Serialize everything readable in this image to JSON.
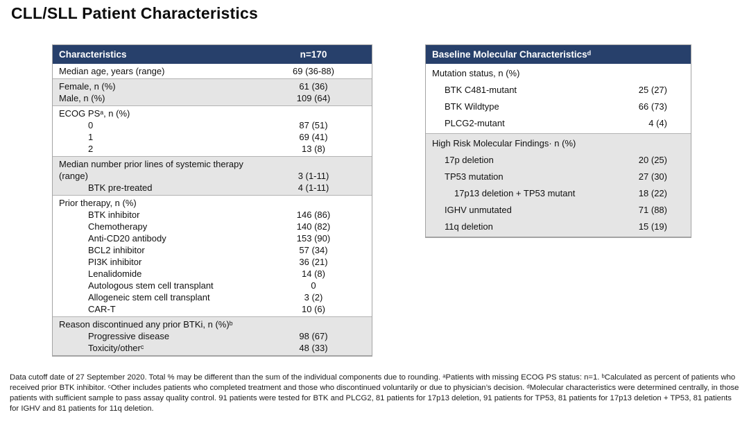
{
  "title": "CLL/SLL Patient Characteristics",
  "colors": {
    "header_bg": "#27406b",
    "header_fg": "#ffffff",
    "shaded_row_bg": "#e5e5e5"
  },
  "left_table": {
    "header": {
      "label": "Characteristics",
      "value": "n=170"
    },
    "sections": [
      {
        "shaded": false,
        "rows": [
          {
            "label": "Median age, years (range)",
            "value": "69 (36-88)",
            "indent": 0
          }
        ]
      },
      {
        "shaded": true,
        "rows": [
          {
            "label": "Female, n (%)",
            "value": "61 (36)",
            "indent": 0
          },
          {
            "label": "Male, n (%)",
            "value": "109 (64)",
            "indent": 0
          }
        ]
      },
      {
        "shaded": false,
        "rows": [
          {
            "label": "ECOG PSᵃ, n (%)",
            "value": "",
            "indent": 0
          },
          {
            "label": "0",
            "value": "87 (51)",
            "indent": 1
          },
          {
            "label": "1",
            "value": "69 (41)",
            "indent": 1
          },
          {
            "label": "2",
            "value": "13 (8)",
            "indent": 1
          }
        ]
      },
      {
        "shaded": true,
        "rows": [
          {
            "label": "Median number prior lines of systemic therapy",
            "value": "",
            "indent": 0
          },
          {
            "label": "(range)",
            "value": "3 (1-11)",
            "indent": 0
          },
          {
            "label": "BTK pre-treated",
            "value": "4 (1-11)",
            "indent": 1
          }
        ]
      },
      {
        "shaded": false,
        "rows": [
          {
            "label": "Prior therapy, n (%)",
            "value": "",
            "indent": 0
          },
          {
            "label": "BTK inhibitor",
            "value": "146 (86)",
            "indent": 1
          },
          {
            "label": "Chemotherapy",
            "value": "140 (82)",
            "indent": 1
          },
          {
            "label": "Anti-CD20 antibody",
            "value": "153 (90)",
            "indent": 1
          },
          {
            "label": "BCL2 inhibitor",
            "value": "57 (34)",
            "indent": 1
          },
          {
            "label": "PI3K inhibitor",
            "value": "36 (21)",
            "indent": 1
          },
          {
            "label": "Lenalidomide",
            "value": "14 (8)",
            "indent": 1
          },
          {
            "label": "Autologous stem cell transplant",
            "value": "0",
            "indent": 1
          },
          {
            "label": "Allogeneic stem cell transplant",
            "value": "3 (2)",
            "indent": 1
          },
          {
            "label": "CAR-T",
            "value": "10 (6)",
            "indent": 1
          }
        ]
      },
      {
        "shaded": true,
        "rows": [
          {
            "label": "Reason discontinued any prior BTKi, n (%)ᵇ",
            "value": "",
            "indent": 0
          },
          {
            "label": "Progressive disease",
            "value": "98 (67)",
            "indent": 1
          },
          {
            "label": "Toxicity/otherᶜ",
            "value": "48 (33)",
            "indent": 1
          }
        ]
      }
    ]
  },
  "right_table": {
    "header": {
      "label": "Baseline Molecular Characteristicsᵈ"
    },
    "sections": [
      {
        "shaded": false,
        "rows": [
          {
            "label": "Mutation status, n (%)",
            "value": "",
            "indent": 0
          },
          {
            "label": "BTK C481-mutant",
            "value": "25 (27)",
            "indent": 1
          },
          {
            "label": "BTK Wildtype",
            "value": "66 (73)",
            "indent": 1
          },
          {
            "label": "PLCG2-mutant",
            "value": "4 (4)",
            "indent": 1
          }
        ]
      },
      {
        "shaded": true,
        "rows": [
          {
            "label": "High Risk Molecular Findings· n (%)",
            "value": "",
            "indent": 0
          },
          {
            "label": "17p deletion",
            "value": "20 (25)",
            "indent": 1
          },
          {
            "label": "TP53 mutation",
            "value": "27 (30)",
            "indent": 1
          },
          {
            "label": "17p13 deletion + TP53 mutant",
            "value": "18 (22)",
            "indent": 2
          },
          {
            "label": "IGHV unmutated",
            "value": "71 (88)",
            "indent": 1
          },
          {
            "label": "11q deletion",
            "value": "15 (19)",
            "indent": 1
          }
        ]
      }
    ]
  },
  "footnote": "Data cutoff date of 27 September 2020. Total % may be different than the sum of the individual components due to rounding. ᵃPatients with missing ECOG PS status: n=1. ᵇCalculated as percent of patients who received prior BTK inhibitor. ᶜOther includes patients who completed treatment and those who discontinued voluntarily or due to physician’s decision. ᵈMolecular characteristics were determined centrally, in those patients with sufficient sample to pass assay quality control. 91 patients were tested for BTK and PLCG2, 81 patients for 17p13 deletion, 91 patients for TP53, 81 patients for 17p13 deletion + TP53, 81 patients for IGHV and 81 patients for 11q deletion."
}
